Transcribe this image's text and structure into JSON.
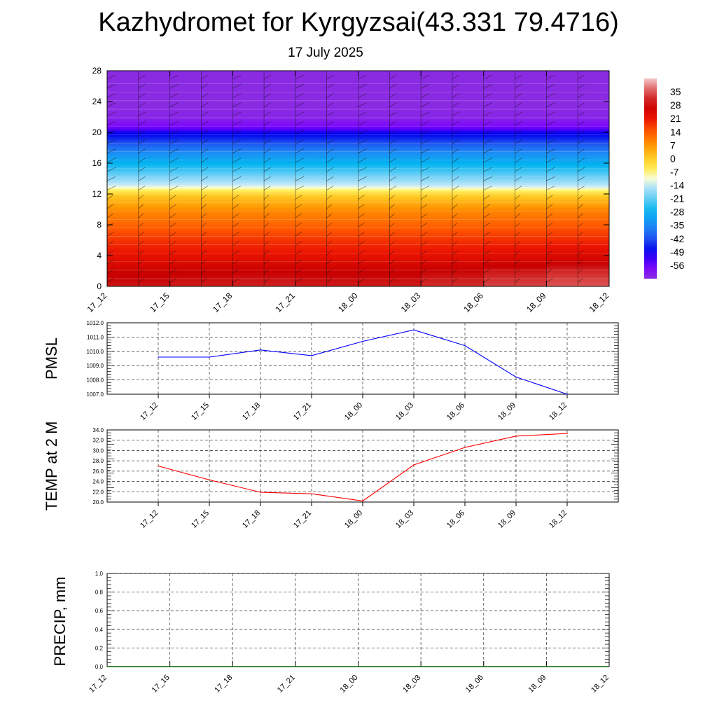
{
  "header": {
    "title": "Kazhydromet for Kyrgyzsai(43.331 79.4716)",
    "date": "17 July 2025"
  },
  "colors": {
    "pmsl_line": "#0000ff",
    "temp_line": "#ff0000",
    "precip_line": "#006400"
  },
  "chart_data": [
    {
      "type": "heatmap",
      "title": "",
      "xlabel": "",
      "ylabel": "",
      "x": [
        "17_12",
        "17_15",
        "17_18",
        "17_21",
        "18_00",
        "18_03",
        "18_06",
        "18_09",
        "18_12"
      ],
      "yticks": [
        0,
        4,
        8,
        12,
        16,
        20,
        24,
        28
      ],
      "ylim": [
        0,
        28
      ],
      "colorbar": {
        "labels": [
          "35",
          "28",
          "21",
          "14",
          "7",
          "0",
          "-7",
          "-14",
          "-21",
          "-28",
          "-35",
          "-42",
          "-49",
          "-56"
        ],
        "range": [
          -63,
          42
        ]
      },
      "levels": [
        0,
        2,
        4,
        6,
        8,
        10,
        12,
        13,
        14,
        16,
        18,
        20,
        21,
        22,
        24,
        28
      ],
      "values": [
        [
          30,
          30,
          31,
          31,
          30,
          31,
          33,
          35,
          36
        ],
        [
          27,
          27,
          28,
          28,
          27,
          28,
          29,
          31,
          32
        ],
        [
          22,
          22,
          22,
          22,
          22,
          22,
          23,
          24,
          25
        ],
        [
          18,
          18,
          18,
          18,
          18,
          18,
          18,
          19,
          19
        ],
        [
          13,
          13,
          13,
          13,
          13,
          13,
          13,
          14,
          14
        ],
        [
          8,
          8,
          8,
          8,
          8,
          8,
          8,
          9,
          9
        ],
        [
          0,
          0,
          0,
          -1,
          -1,
          -1,
          -1,
          -1,
          -1
        ],
        [
          -12,
          -12,
          -12,
          -12,
          -12,
          -13,
          -13,
          -13,
          -14
        ],
        [
          -18,
          -18,
          -18,
          -18,
          -18,
          -18,
          -19,
          -19,
          -19
        ],
        [
          -28,
          -28,
          -28,
          -28,
          -28,
          -28,
          -28,
          -29,
          -29
        ],
        [
          -38,
          -38,
          -38,
          -38,
          -38,
          -38,
          -38,
          -38,
          -39
        ],
        [
          -50,
          -50,
          -50,
          -50,
          -50,
          -50,
          -50,
          -50,
          -50
        ],
        [
          -58,
          -58,
          -58,
          -58,
          -58,
          -58,
          -58,
          -58,
          -58
        ],
        [
          -62,
          -62,
          -62,
          -62,
          -62,
          -62,
          -62,
          -62,
          -62
        ],
        [
          -63,
          -63,
          -63,
          -63,
          -63,
          -63,
          -63,
          -63,
          -63
        ],
        [
          -63,
          -63,
          -63,
          -63,
          -63,
          -63,
          -63,
          -63,
          -63
        ]
      ],
      "grid": false,
      "legend": "right"
    },
    {
      "type": "line",
      "title": "",
      "xlabel": "",
      "ylabel": "PMSL",
      "categories": [
        "17_12",
        "17_15",
        "17_18",
        "17_21",
        "18_00",
        "18_03",
        "18_06",
        "18_09",
        "18_12"
      ],
      "series": [
        {
          "values": [
            1009.6,
            1009.6,
            1010.1,
            1009.7,
            1010.7,
            1011.5,
            1010.4,
            1008.2,
            1007.0
          ]
        }
      ],
      "yticks": [
        "1007.0",
        "1008.0",
        "1009.0",
        "1010.0",
        "1011.0",
        "1012.0"
      ],
      "ylim": [
        1007.0,
        1012.0
      ],
      "grid": true
    },
    {
      "type": "line",
      "title": "",
      "xlabel": "",
      "ylabel": "TEMP at 2 M",
      "categories": [
        "17_12",
        "17_15",
        "17_18",
        "17_21",
        "18_00",
        "18_03",
        "18_06",
        "18_09",
        "18_12"
      ],
      "series": [
        {
          "values": [
            27.0,
            24.3,
            21.9,
            21.6,
            20.2,
            27.2,
            30.6,
            32.8,
            33.3
          ]
        }
      ],
      "yticks": [
        "20.0",
        "22.0",
        "24.0",
        "26.0",
        "28.0",
        "30.0",
        "32.0",
        "34.0"
      ],
      "ylim": [
        20.0,
        34.0
      ],
      "grid": true
    },
    {
      "type": "line",
      "title": "",
      "xlabel": "",
      "ylabel": "PRECIP, mm",
      "categories": [
        "17_12",
        "17_15",
        "17_18",
        "17_21",
        "18_00",
        "18_03",
        "18_06",
        "18_09",
        "18_12"
      ],
      "series": [
        {
          "values": [
            0,
            0,
            0,
            0,
            0,
            0,
            0,
            0,
            0
          ]
        }
      ],
      "yticks": [
        "0.0",
        "0.2",
        "0.4",
        "0.6",
        "0.8",
        "1.0"
      ],
      "ylim": [
        0.0,
        1.0
      ],
      "grid": true
    }
  ]
}
